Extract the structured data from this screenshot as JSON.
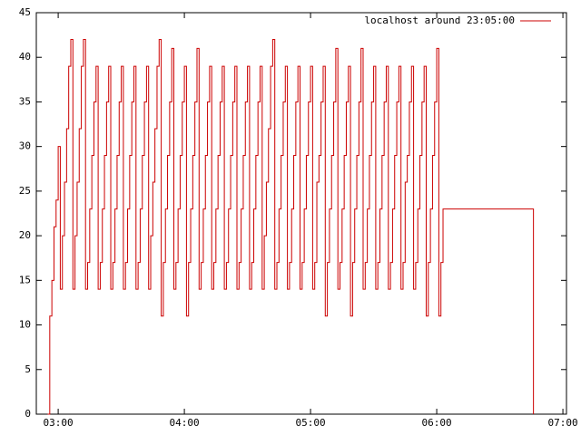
{
  "chart_data": {
    "type": "step",
    "x": [
      175,
      176,
      177,
      178,
      179,
      180,
      181,
      182,
      183,
      184,
      185,
      186,
      187,
      188,
      189,
      190,
      191,
      192,
      193,
      194,
      195,
      196,
      197,
      198,
      199,
      200,
      201,
      202,
      203,
      204,
      205,
      206,
      207,
      208,
      209,
      210,
      211,
      212,
      213,
      214,
      215,
      216,
      217,
      218,
      219,
      220,
      221,
      222,
      223,
      224,
      225,
      226,
      227,
      228,
      229,
      230,
      231,
      232,
      233,
      234,
      235,
      236,
      237,
      238,
      239,
      240,
      241,
      242,
      243,
      244,
      245,
      246,
      247,
      248,
      249,
      250,
      251,
      252,
      253,
      254,
      255,
      256,
      257,
      258,
      259,
      260,
      261,
      262,
      263,
      264,
      265,
      266,
      267,
      268,
      269,
      270,
      271,
      272,
      273,
      274,
      275,
      276,
      277,
      278,
      279,
      280,
      281,
      282,
      283,
      284,
      285,
      286,
      287,
      288,
      289,
      290,
      291,
      292,
      293,
      294,
      295,
      296,
      297,
      298,
      299,
      300,
      301,
      302,
      303,
      304,
      305,
      306,
      307,
      308,
      309,
      310,
      311,
      312,
      313,
      314,
      315,
      316,
      317,
      318,
      319,
      320,
      321,
      322,
      323,
      324,
      325,
      326,
      327,
      328,
      329,
      330,
      331,
      332,
      333,
      334,
      335,
      336,
      337,
      338,
      339,
      340,
      341,
      342,
      343,
      344,
      345,
      346,
      347,
      348,
      349,
      350,
      351,
      352,
      353,
      354,
      355,
      356,
      357,
      358,
      359,
      360,
      361,
      362,
      363,
      406
    ],
    "series": [
      {
        "name": "localhost around 23:05:00",
        "color": "#cc0000",
        "values": [
          0,
          11,
          15,
          21,
          24,
          30,
          14,
          20,
          26,
          32,
          39,
          42,
          14,
          20,
          26,
          32,
          39,
          42,
          14,
          17,
          23,
          29,
          35,
          39,
          14,
          17,
          23,
          29,
          35,
          39,
          14,
          17,
          23,
          29,
          35,
          39,
          14,
          17,
          23,
          29,
          35,
          39,
          14,
          17,
          23,
          29,
          35,
          39,
          14,
          20,
          26,
          32,
          39,
          42,
          11,
          17,
          23,
          29,
          35,
          41,
          14,
          17,
          23,
          29,
          35,
          39,
          11,
          17,
          23,
          29,
          35,
          41,
          14,
          17,
          23,
          29,
          35,
          39,
          14,
          17,
          23,
          29,
          35,
          39,
          14,
          17,
          23,
          29,
          35,
          39,
          14,
          17,
          23,
          29,
          35,
          39,
          14,
          17,
          23,
          29,
          35,
          39,
          14,
          20,
          26,
          32,
          39,
          42,
          14,
          17,
          23,
          29,
          35,
          39,
          14,
          17,
          23,
          29,
          35,
          39,
          14,
          17,
          23,
          29,
          35,
          39,
          14,
          17,
          26,
          29,
          35,
          39,
          11,
          17,
          23,
          29,
          35,
          41,
          14,
          17,
          23,
          29,
          35,
          39,
          11,
          17,
          23,
          29,
          35,
          41,
          14,
          17,
          23,
          29,
          35,
          39,
          14,
          17,
          23,
          29,
          35,
          39,
          14,
          17,
          23,
          29,
          35,
          39,
          14,
          17,
          26,
          29,
          35,
          39,
          14,
          17,
          23,
          29,
          35,
          39,
          11,
          17,
          23,
          29,
          35,
          41,
          11,
          17,
          23,
          0
        ]
      }
    ],
    "xlim": [
      169.6,
      421.7
    ],
    "ylim": [
      0,
      45
    ],
    "xticks": [
      {
        "value": 180,
        "label": "03:00"
      },
      {
        "value": 240,
        "label": "04:00"
      },
      {
        "value": 300,
        "label": "05:00"
      },
      {
        "value": 360,
        "label": "06:00"
      },
      {
        "value": 420,
        "label": "07:00"
      }
    ],
    "yticks": [
      0,
      5,
      10,
      15,
      20,
      25,
      30,
      35,
      40,
      45
    ],
    "legend": "top right"
  }
}
